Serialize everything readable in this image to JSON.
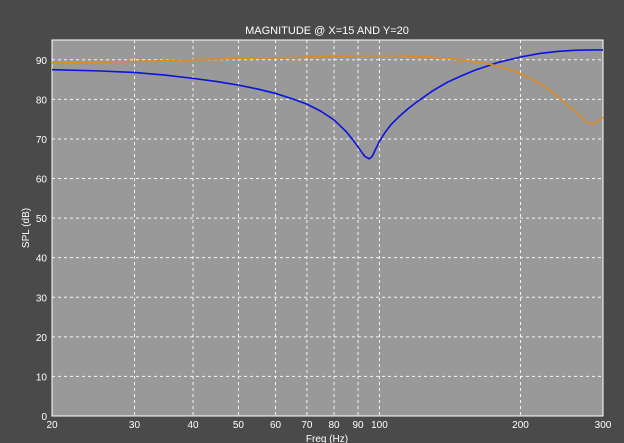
{
  "chart_data": {
    "type": "line",
    "title": "MAGNITUDE @ X=15 AND Y=20",
    "xlabel": "Freq (Hz)",
    "ylabel": "SPL (dB)",
    "xscale": "log",
    "xlim": [
      20,
      300
    ],
    "ylim": [
      0,
      95
    ],
    "grid": true,
    "xticks": [
      20,
      30,
      40,
      50,
      60,
      70,
      80,
      90,
      100,
      200,
      300
    ],
    "xtick_labels": [
      "20",
      "30",
      "40",
      "50",
      "60",
      "70",
      "80",
      "90",
      "100",
      "200",
      "300"
    ],
    "yticks": [
      0,
      10,
      20,
      30,
      40,
      50,
      60,
      70,
      80,
      90
    ],
    "ytick_labels": [
      "0",
      "10",
      "20",
      "30",
      "40",
      "50",
      "60",
      "70",
      "80",
      "90"
    ],
    "colors": {
      "figure_background": "#4a4a4a",
      "plot_background": "#999999",
      "grid": "#ffffff",
      "text": "#ffffff"
    },
    "series": [
      {
        "color": "#0a14dc",
        "x": [
          20,
          25,
          30,
          35,
          40,
          45,
          50,
          55,
          60,
          65,
          70,
          75,
          80,
          85,
          88,
          91,
          93,
          95,
          96,
          97,
          98,
          100,
          103,
          106,
          110,
          115,
          120,
          130,
          140,
          150,
          160,
          180,
          200,
          220,
          240,
          260,
          280,
          300
        ],
        "y": [
          87.5,
          87.2,
          86.8,
          86.1,
          85.3,
          84.5,
          83.6,
          82.6,
          81.5,
          80.2,
          78.8,
          77.0,
          74.8,
          71.8,
          69.6,
          67.2,
          65.6,
          65.0,
          65.3,
          66.1,
          67.3,
          69.4,
          71.8,
          73.7,
          75.6,
          77.6,
          79.3,
          82.2,
          84.4,
          86.0,
          87.4,
          89.4,
          90.7,
          91.6,
          92.1,
          92.4,
          92.5,
          92.5
        ]
      },
      {
        "color": "#e08a1e",
        "x": [
          20,
          30,
          40,
          50,
          60,
          70,
          80,
          90,
          100,
          110,
          120,
          130,
          140,
          150,
          160,
          170,
          180,
          190,
          200,
          210,
          220,
          230,
          240,
          250,
          260,
          270,
          275,
          280,
          285,
          290,
          295,
          300
        ],
        "y": [
          89.2,
          89.6,
          90.0,
          90.3,
          90.5,
          90.7,
          90.9,
          91.0,
          91.0,
          91.0,
          90.8,
          90.6,
          90.3,
          90.0,
          89.5,
          89.0,
          88.3,
          87.5,
          86.5,
          85.3,
          84.0,
          82.4,
          80.8,
          79.0,
          77.2,
          75.5,
          74.6,
          74.0,
          73.8,
          74.2,
          74.8,
          75.5
        ]
      }
    ]
  }
}
